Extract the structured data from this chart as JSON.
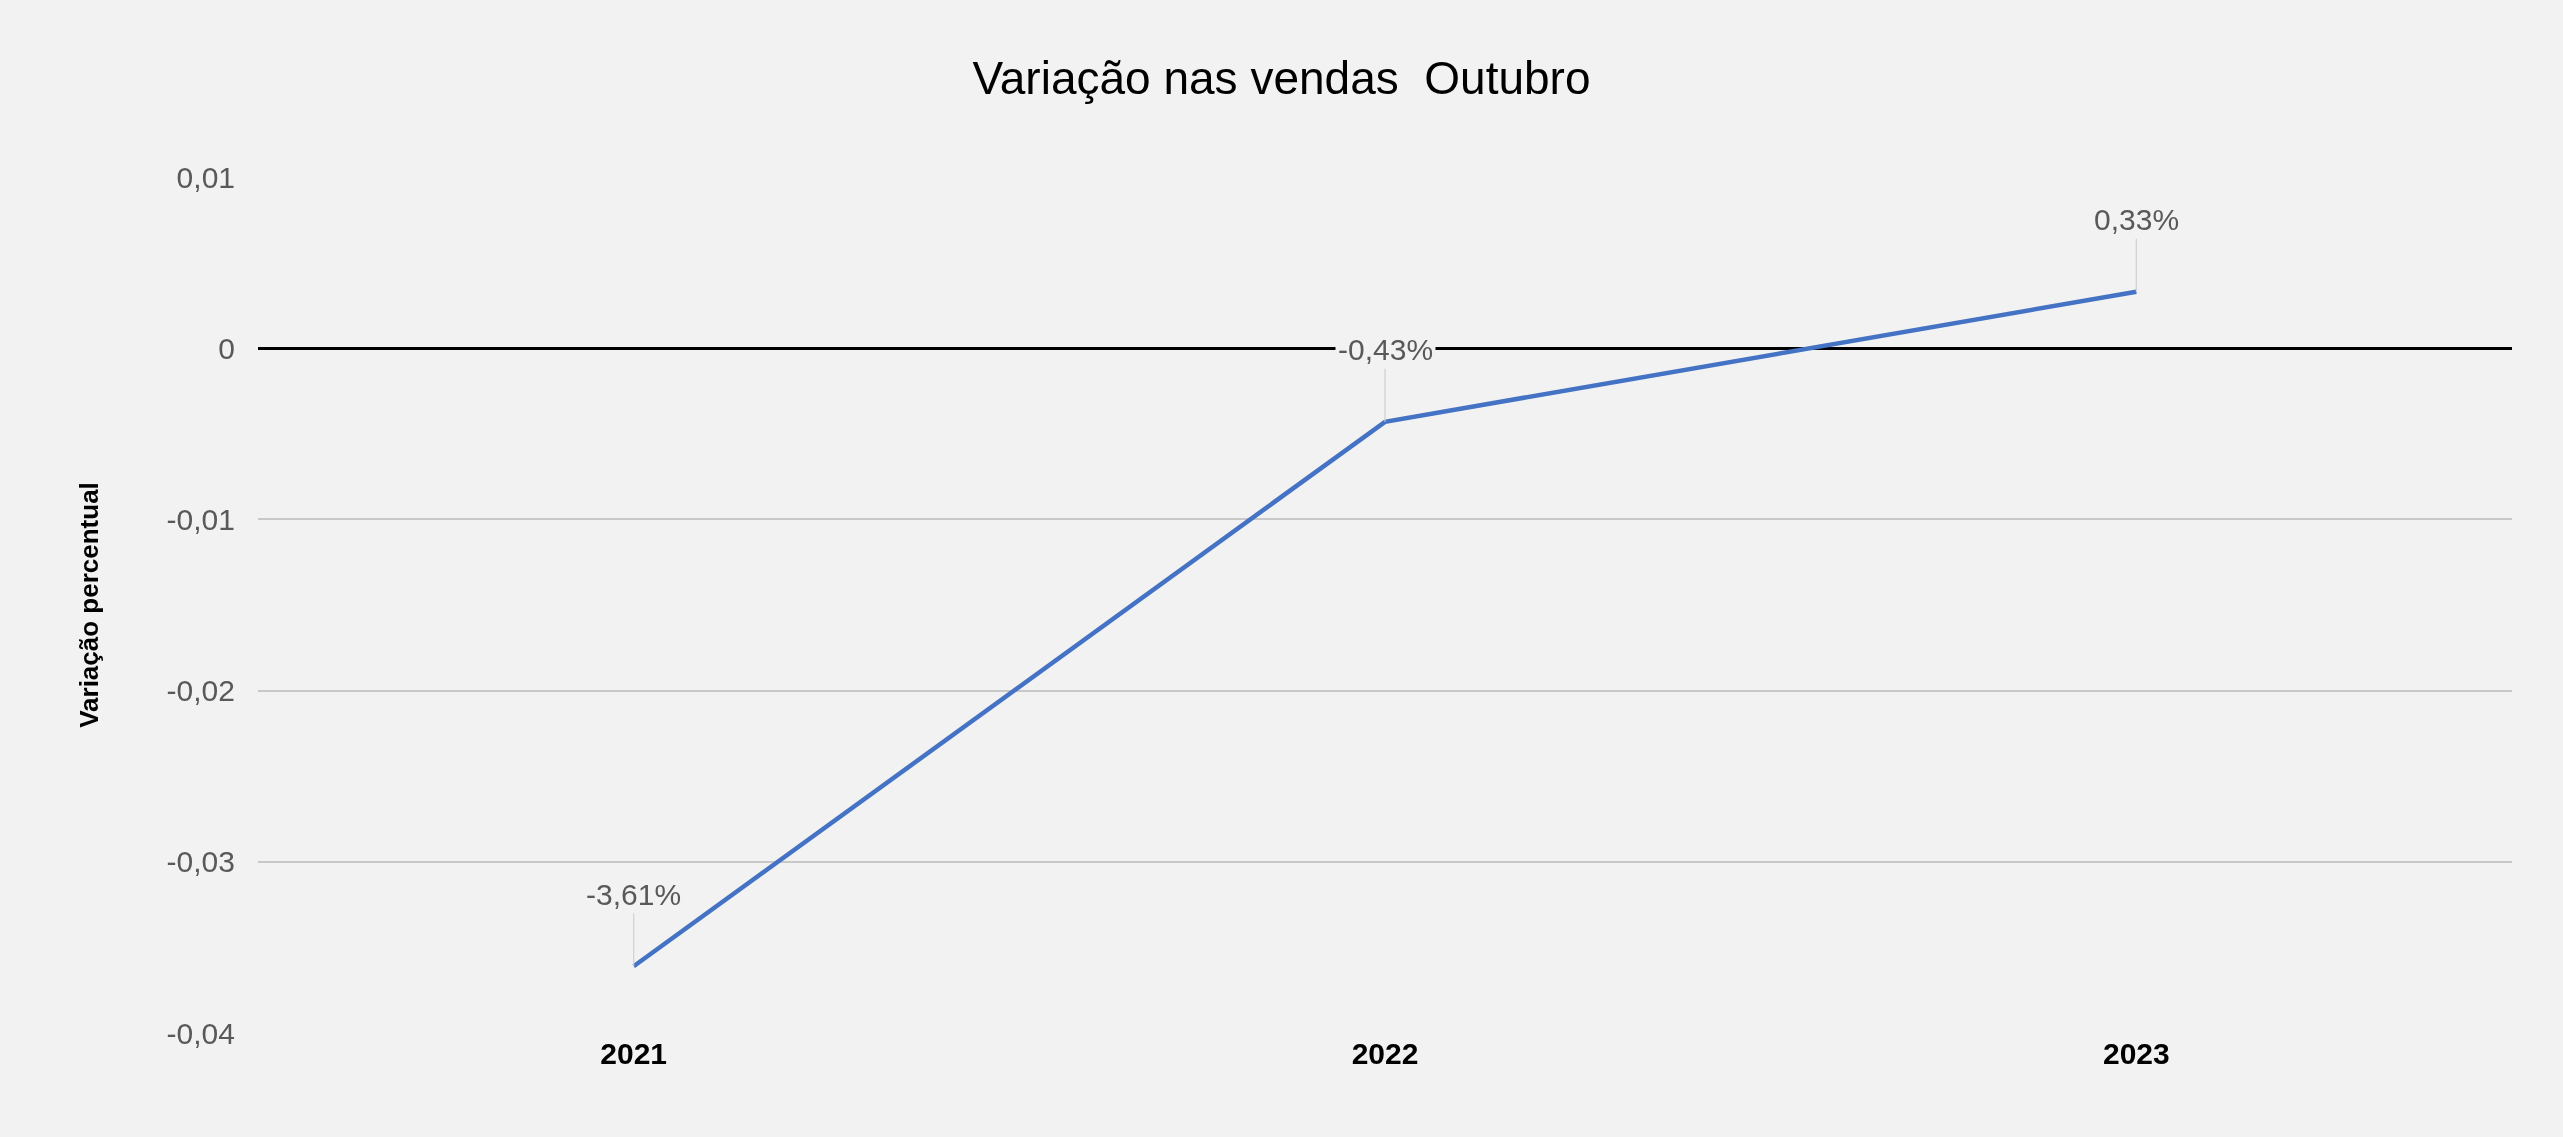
{
  "chart_data": {
    "type": "line",
    "title": "Variação nas vendas  Outubro",
    "ylabel": "Variação percentual",
    "categories": [
      "2021",
      "2022",
      "2023"
    ],
    "series": [
      {
        "color": "#4472c4",
        "values": [
          -0.0361,
          -0.0043,
          0.0033
        ],
        "value_labels": [
          "-3,61%",
          "-0,43%",
          "0,33%"
        ]
      }
    ],
    "ylim": [
      -0.04,
      0.01
    ],
    "yticks": [
      {
        "value": 0.01,
        "label": "0,01"
      },
      0,
      {
        "value": -0.01,
        "label": "-0,01"
      },
      {
        "value": -0.02,
        "label": "-0,02"
      },
      {
        "value": -0.03,
        "label": "-0,03"
      },
      {
        "value": -0.04,
        "label": "-0,04"
      }
    ],
    "grid": "y",
    "legend": false,
    "marker": "none",
    "line_style": "solid"
  }
}
